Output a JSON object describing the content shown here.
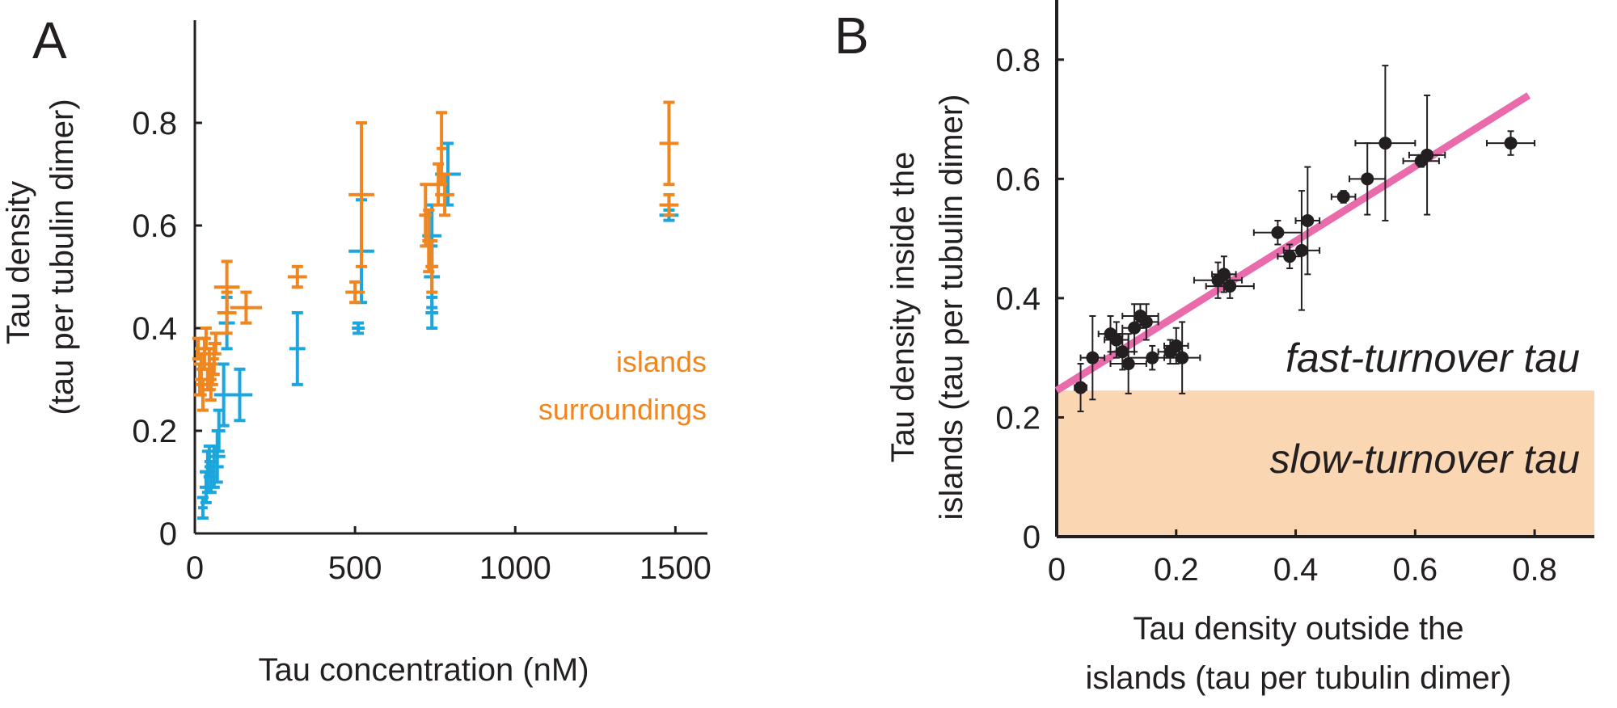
{
  "colors": {
    "islands": "#f0861f",
    "surroundings": "#1ba7dd",
    "fit_line": "#e96bab",
    "slow_region": "#fad6b2",
    "points": "#231f20"
  },
  "chart_data": [
    {
      "panel": "A",
      "type": "scatter",
      "xlabel": "Tau concentration (nM)",
      "ylabel_line1": "Tau density",
      "ylabel_line2": "(tau per tubulin dimer)",
      "xlim": [
        0,
        1600
      ],
      "ylim": [
        0,
        1.0
      ],
      "xticks": [
        "0",
        "500",
        "1000",
        "1500"
      ],
      "xtick_values": [
        0,
        500,
        1000,
        1500
      ],
      "yticks": [
        "0",
        "0.2",
        "0.4",
        "0.6",
        "0.8"
      ],
      "ytick_values": [
        0,
        0.2,
        0.4,
        0.6,
        0.8
      ],
      "legend": [
        "islands",
        "surroundings"
      ],
      "legend_position": "right",
      "series": [
        {
          "name": "islands",
          "color_key": "islands",
          "points": [
            {
              "x": 10,
              "y": 0.36,
              "xerr": 12,
              "yerr": 0.02
            },
            {
              "x": 15,
              "y": 0.3,
              "xerr": 15,
              "yerr": 0.03
            },
            {
              "x": 20,
              "y": 0.32,
              "xerr": 15,
              "yerr": 0.03
            },
            {
              "x": 25,
              "y": 0.27,
              "xerr": 12,
              "yerr": 0.03
            },
            {
              "x": 30,
              "y": 0.35,
              "xerr": 18,
              "yerr": 0.03
            },
            {
              "x": 35,
              "y": 0.38,
              "xerr": 15,
              "yerr": 0.02
            },
            {
              "x": 40,
              "y": 0.3,
              "xerr": 20,
              "yerr": 0.02
            },
            {
              "x": 45,
              "y": 0.33,
              "xerr": 18,
              "yerr": 0.03
            },
            {
              "x": 50,
              "y": 0.28,
              "xerr": 15,
              "yerr": 0.02
            },
            {
              "x": 55,
              "y": 0.31,
              "xerr": 20,
              "yerr": 0.02
            },
            {
              "x": 60,
              "y": 0.34,
              "xerr": 15,
              "yerr": 0.03
            },
            {
              "x": 65,
              "y": 0.37,
              "xerr": 18,
              "yerr": 0.02
            },
            {
              "x": 100,
              "y": 0.48,
              "xerr": 40,
              "yerr": 0.05
            },
            {
              "x": 100,
              "y": 0.43,
              "xerr": 30,
              "yerr": 0.04
            },
            {
              "x": 160,
              "y": 0.44,
              "xerr": 50,
              "yerr": 0.03
            },
            {
              "x": 320,
              "y": 0.5,
              "xerr": 30,
              "yerr": 0.02
            },
            {
              "x": 500,
              "y": 0.47,
              "xerr": 30,
              "yerr": 0.02
            },
            {
              "x": 520,
              "y": 0.66,
              "xerr": 40,
              "yerr": 0.14
            },
            {
              "x": 720,
              "y": 0.62,
              "xerr": 20,
              "yerr": 0.06
            },
            {
              "x": 730,
              "y": 0.57,
              "xerr": 20,
              "yerr": 0.06
            },
            {
              "x": 740,
              "y": 0.52,
              "xerr": 20,
              "yerr": 0.05
            },
            {
              "x": 760,
              "y": 0.68,
              "xerr": 25,
              "yerr": 0.04
            },
            {
              "x": 780,
              "y": 0.66,
              "xerr": 30,
              "yerr": 0.04
            },
            {
              "x": 770,
              "y": 0.75,
              "xerr": 15,
              "yerr": 0.07
            },
            {
              "x": 1480,
              "y": 0.76,
              "xerr": 30,
              "yerr": 0.08
            },
            {
              "x": 1480,
              "y": 0.64,
              "xerr": 30,
              "yerr": 0.02
            }
          ]
        },
        {
          "name": "surroundings",
          "color_key": "surroundings",
          "points": [
            {
              "x": 25,
              "y": 0.05,
              "xerr": 15,
              "yerr": 0.02
            },
            {
              "x": 35,
              "y": 0.09,
              "xerr": 20,
              "yerr": 0.03
            },
            {
              "x": 40,
              "y": 0.12,
              "xerr": 25,
              "yerr": 0.04
            },
            {
              "x": 50,
              "y": 0.11,
              "xerr": 20,
              "yerr": 0.03
            },
            {
              "x": 45,
              "y": 0.14,
              "xerr": 15,
              "yerr": 0.03
            },
            {
              "x": 60,
              "y": 0.13,
              "xerr": 30,
              "yerr": 0.04
            },
            {
              "x": 70,
              "y": 0.15,
              "xerr": 25,
              "yerr": 0.05
            },
            {
              "x": 75,
              "y": 0.2,
              "xerr": 20,
              "yerr": 0.04
            },
            {
              "x": 90,
              "y": 0.27,
              "xerr": 30,
              "yerr": 0.06
            },
            {
              "x": 100,
              "y": 0.41,
              "xerr": 25,
              "yerr": 0.05
            },
            {
              "x": 140,
              "y": 0.27,
              "xerr": 40,
              "yerr": 0.05
            },
            {
              "x": 320,
              "y": 0.36,
              "xerr": 25,
              "yerr": 0.07
            },
            {
              "x": 510,
              "y": 0.4,
              "xerr": 20,
              "yerr": 0.01
            },
            {
              "x": 520,
              "y": 0.55,
              "xerr": 40,
              "yerr": 0.1
            },
            {
              "x": 740,
              "y": 0.58,
              "xerr": 30,
              "yerr": 0.06
            },
            {
              "x": 740,
              "y": 0.5,
              "xerr": 25,
              "yerr": 0.06
            },
            {
              "x": 740,
              "y": 0.43,
              "xerr": 20,
              "yerr": 0.03
            },
            {
              "x": 790,
              "y": 0.7,
              "xerr": 40,
              "yerr": 0.06
            },
            {
              "x": 1480,
              "y": 0.62,
              "xerr": 30,
              "yerr": 0.01
            }
          ]
        }
      ]
    },
    {
      "panel": "B",
      "type": "scatter",
      "xlabel_line1": "Tau density outside the",
      "xlabel_line2": "islands (tau per tubulin dimer)",
      "ylabel_line1": "Tau density inside the",
      "ylabel_line2": "islands (tau per tubulin dimer)",
      "xlim": [
        0,
        0.9
      ],
      "ylim": [
        0,
        0.9
      ],
      "xticks": [
        "0",
        "0.2",
        "0.4",
        "0.6",
        "0.8"
      ],
      "xtick_values": [
        0,
        0.2,
        0.4,
        0.6,
        0.8
      ],
      "yticks": [
        "0",
        "0.2",
        "0.4",
        "0.6",
        "0.8"
      ],
      "ytick_values": [
        0,
        0.2,
        0.4,
        0.6,
        0.8
      ],
      "annotations": {
        "fast": "fast-turnover tau",
        "slow": "slow-turnover tau"
      },
      "slow_region": {
        "y_from": 0,
        "y_to": 0.245
      },
      "fit_line": {
        "x": [
          0,
          0.79
        ],
        "y": [
          0.245,
          0.74
        ]
      },
      "points": [
        {
          "x": 0.04,
          "y": 0.25,
          "xerr": 0.01,
          "yerr": 0.04
        },
        {
          "x": 0.06,
          "y": 0.3,
          "xerr": 0.02,
          "yerr": 0.07
        },
        {
          "x": 0.09,
          "y": 0.34,
          "xerr": 0.02,
          "yerr": 0.03
        },
        {
          "x": 0.1,
          "y": 0.33,
          "xerr": 0.02,
          "yerr": 0.03
        },
        {
          "x": 0.11,
          "y": 0.31,
          "xerr": 0.02,
          "yerr": 0.03
        },
        {
          "x": 0.12,
          "y": 0.29,
          "xerr": 0.03,
          "yerr": 0.05
        },
        {
          "x": 0.13,
          "y": 0.35,
          "xerr": 0.02,
          "yerr": 0.04
        },
        {
          "x": 0.14,
          "y": 0.37,
          "xerr": 0.03,
          "yerr": 0.02
        },
        {
          "x": 0.15,
          "y": 0.36,
          "xerr": 0.02,
          "yerr": 0.03
        },
        {
          "x": 0.16,
          "y": 0.3,
          "xerr": 0.04,
          "yerr": 0.02
        },
        {
          "x": 0.19,
          "y": 0.31,
          "xerr": 0.02,
          "yerr": 0.02
        },
        {
          "x": 0.2,
          "y": 0.32,
          "xerr": 0.02,
          "yerr": 0.03
        },
        {
          "x": 0.21,
          "y": 0.3,
          "xerr": 0.03,
          "yerr": 0.06
        },
        {
          "x": 0.27,
          "y": 0.43,
          "xerr": 0.04,
          "yerr": 0.03
        },
        {
          "x": 0.28,
          "y": 0.44,
          "xerr": 0.02,
          "yerr": 0.03
        },
        {
          "x": 0.29,
          "y": 0.42,
          "xerr": 0.04,
          "yerr": 0.02
        },
        {
          "x": 0.37,
          "y": 0.51,
          "xerr": 0.04,
          "yerr": 0.02
        },
        {
          "x": 0.39,
          "y": 0.47,
          "xerr": 0.02,
          "yerr": 0.02
        },
        {
          "x": 0.41,
          "y": 0.48,
          "xerr": 0.03,
          "yerr": 0.1
        },
        {
          "x": 0.42,
          "y": 0.53,
          "xerr": 0.02,
          "yerr": 0.09
        },
        {
          "x": 0.48,
          "y": 0.57,
          "xerr": 0.02,
          "yerr": 0.01
        },
        {
          "x": 0.52,
          "y": 0.6,
          "xerr": 0.03,
          "yerr": 0.06
        },
        {
          "x": 0.55,
          "y": 0.66,
          "xerr": 0.05,
          "yerr": 0.13
        },
        {
          "x": 0.61,
          "y": 0.63,
          "xerr": 0.03,
          "yerr": 0.01
        },
        {
          "x": 0.62,
          "y": 0.64,
          "xerr": 0.03,
          "yerr": 0.1
        },
        {
          "x": 0.76,
          "y": 0.66,
          "xerr": 0.04,
          "yerr": 0.02
        }
      ]
    }
  ]
}
